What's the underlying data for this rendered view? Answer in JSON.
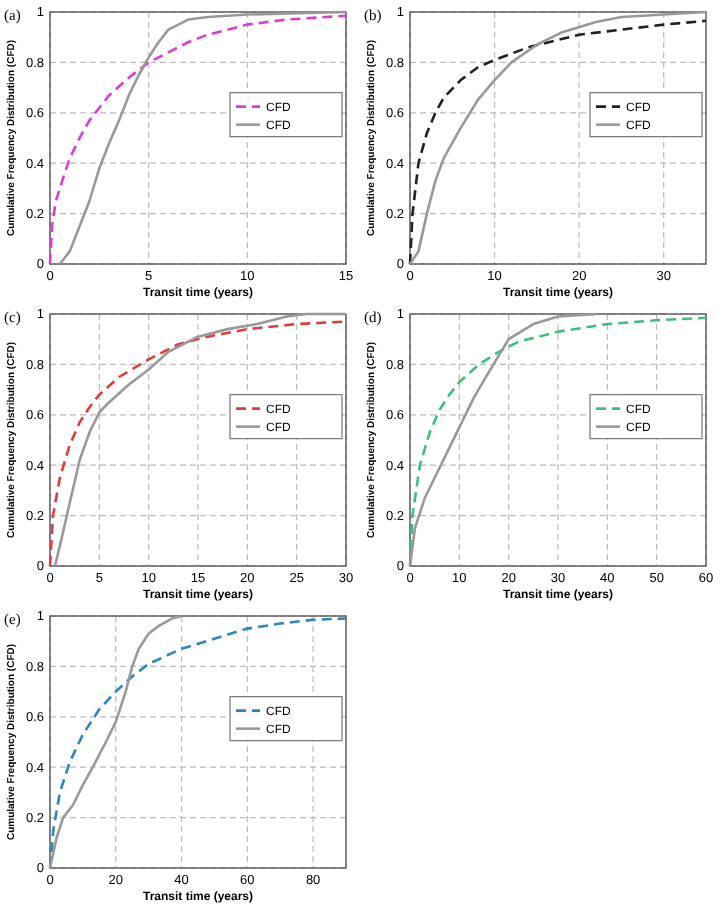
{
  "chart_data": [
    {
      "type": "line",
      "title": "(a)",
      "xlabel": "Transit time (years)",
      "ylabel": "Cumulative Frequency Distribution (CFD)",
      "xlim": [
        0,
        15
      ],
      "xticks": [
        0,
        5,
        10,
        15
      ],
      "ylim": [
        0,
        1
      ],
      "yticks": [
        0,
        0.2,
        0.4,
        0.6,
        0.8,
        1
      ],
      "grid": true,
      "legend": "right",
      "series": [
        {
          "name": "CFD",
          "color": "#d63fd6",
          "line_style": "dashed",
          "x": [
            0,
            0.1,
            0.3,
            0.7,
            1,
            1.5,
            2,
            2.5,
            3,
            4,
            5,
            6,
            7,
            8,
            9,
            10,
            12,
            15
          ],
          "values": [
            0,
            0.15,
            0.25,
            0.35,
            0.42,
            0.5,
            0.57,
            0.62,
            0.67,
            0.74,
            0.8,
            0.84,
            0.88,
            0.91,
            0.93,
            0.95,
            0.97,
            0.985
          ]
        },
        {
          "name": "CFD",
          "color": "#999999",
          "line_style": "solid",
          "x": [
            0.5,
            1,
            1.5,
            2,
            2.5,
            3,
            3.5,
            4,
            4.5,
            5,
            5.5,
            6,
            7,
            8,
            10,
            15
          ],
          "values": [
            0,
            0.05,
            0.15,
            0.25,
            0.38,
            0.48,
            0.57,
            0.67,
            0.75,
            0.82,
            0.88,
            0.93,
            0.97,
            0.98,
            0.99,
            1
          ]
        }
      ]
    },
    {
      "type": "line",
      "title": "(b)",
      "xlabel": "Transit time (years)",
      "ylabel": "Cumulative Frequency Distribution (CFD)",
      "xlim": [
        0,
        35
      ],
      "xticks": [
        0,
        10,
        20,
        30
      ],
      "ylim": [
        0,
        1
      ],
      "yticks": [
        0,
        0.2,
        0.4,
        0.6,
        0.8,
        1
      ],
      "grid": true,
      "legend": "right",
      "series": [
        {
          "name": "CFD",
          "color": "#222222",
          "line_style": "dashed",
          "x": [
            0,
            0.3,
            1,
            2,
            3,
            4,
            6,
            8,
            10,
            14,
            20,
            25,
            30,
            35
          ],
          "values": [
            0,
            0.2,
            0.4,
            0.52,
            0.6,
            0.66,
            0.73,
            0.78,
            0.81,
            0.86,
            0.91,
            0.93,
            0.95,
            0.965
          ]
        },
        {
          "name": "CFD",
          "color": "#999999",
          "line_style": "solid",
          "x": [
            0,
            1,
            2,
            3,
            4,
            6,
            8,
            10,
            12,
            15,
            18,
            22,
            25,
            30,
            35
          ],
          "values": [
            0,
            0.05,
            0.2,
            0.33,
            0.42,
            0.54,
            0.65,
            0.73,
            0.8,
            0.87,
            0.92,
            0.96,
            0.98,
            0.99,
            1
          ]
        }
      ]
    },
    {
      "type": "line",
      "title": "(c)",
      "xlabel": "Transit time (years)",
      "ylabel": "Cumulative Frequency Distribution (CFD)",
      "xlim": [
        0,
        30
      ],
      "xticks": [
        0,
        5,
        10,
        15,
        20,
        25,
        30
      ],
      "ylim": [
        0,
        1
      ],
      "yticks": [
        0,
        0.2,
        0.4,
        0.6,
        0.8,
        1
      ],
      "grid": true,
      "legend": "right",
      "series": [
        {
          "name": "CFD",
          "color": "#e03c3c",
          "line_style": "dashed",
          "x": [
            0,
            0.3,
            1,
            2,
            3,
            4,
            5,
            7,
            10,
            13,
            16,
            20,
            25,
            30
          ],
          "values": [
            0,
            0.2,
            0.35,
            0.48,
            0.57,
            0.63,
            0.68,
            0.75,
            0.82,
            0.88,
            0.91,
            0.94,
            0.96,
            0.97
          ]
        },
        {
          "name": "CFD",
          "color": "#999999",
          "line_style": "solid",
          "x": [
            0.5,
            1,
            2,
            3,
            4,
            5,
            6,
            8,
            10,
            12,
            15,
            18,
            21,
            24,
            26,
            30
          ],
          "values": [
            0,
            0.08,
            0.25,
            0.42,
            0.53,
            0.61,
            0.65,
            0.72,
            0.78,
            0.85,
            0.91,
            0.94,
            0.96,
            0.99,
            1,
            1
          ]
        }
      ]
    },
    {
      "type": "line",
      "title": "(d)",
      "xlabel": "Transit time (years)",
      "ylabel": "Cumulative Frequency Distribution (CFD)",
      "xlim": [
        0,
        60
      ],
      "xticks": [
        0,
        10,
        20,
        30,
        40,
        50,
        60
      ],
      "ylim": [
        0,
        1
      ],
      "yticks": [
        0,
        0.2,
        0.4,
        0.6,
        0.8,
        1
      ],
      "grid": true,
      "legend": "right",
      "series": [
        {
          "name": "CFD",
          "color": "#3fbf7f",
          "line_style": "dashed",
          "x": [
            0,
            0.5,
            2,
            4,
            6,
            8,
            10,
            14,
            18,
            22,
            30,
            40,
            50,
            60
          ],
          "values": [
            0,
            0.2,
            0.4,
            0.53,
            0.62,
            0.68,
            0.73,
            0.8,
            0.85,
            0.89,
            0.93,
            0.96,
            0.975,
            0.985
          ]
        },
        {
          "name": "CFD",
          "color": "#999999",
          "line_style": "solid",
          "x": [
            0,
            1,
            3,
            5,
            8,
            10,
            13,
            16,
            20,
            25,
            30,
            38
          ],
          "values": [
            0,
            0.15,
            0.27,
            0.35,
            0.47,
            0.55,
            0.67,
            0.77,
            0.9,
            0.96,
            0.99,
            1
          ]
        }
      ]
    },
    {
      "type": "line",
      "title": "(e)",
      "xlabel": "Transit time (years)",
      "ylabel": "Cumulative Frequency Distribution (CFD)",
      "xlim": [
        0,
        90
      ],
      "xticks": [
        0,
        20,
        40,
        60,
        80
      ],
      "ylim": [
        0,
        1
      ],
      "yticks": [
        0,
        0.2,
        0.4,
        0.6,
        0.8,
        1
      ],
      "grid": true,
      "legend": "right",
      "series": [
        {
          "name": "CFD",
          "color": "#2e86c1",
          "line_style": "dashed",
          "x": [
            0,
            1,
            3,
            6,
            10,
            15,
            20,
            25,
            30,
            40,
            50,
            60,
            70,
            80,
            90
          ],
          "values": [
            0,
            0.15,
            0.3,
            0.42,
            0.53,
            0.63,
            0.7,
            0.76,
            0.81,
            0.87,
            0.91,
            0.95,
            0.97,
            0.985,
            0.99
          ]
        },
        {
          "name": "CFD",
          "color": "#999999",
          "line_style": "solid",
          "x": [
            0,
            2,
            4,
            7,
            10,
            13,
            17,
            20,
            23,
            25,
            27,
            30,
            33,
            37,
            40
          ],
          "values": [
            0,
            0.12,
            0.2,
            0.25,
            0.33,
            0.4,
            0.5,
            0.58,
            0.7,
            0.8,
            0.87,
            0.93,
            0.96,
            0.99,
            1
          ]
        }
      ]
    }
  ]
}
